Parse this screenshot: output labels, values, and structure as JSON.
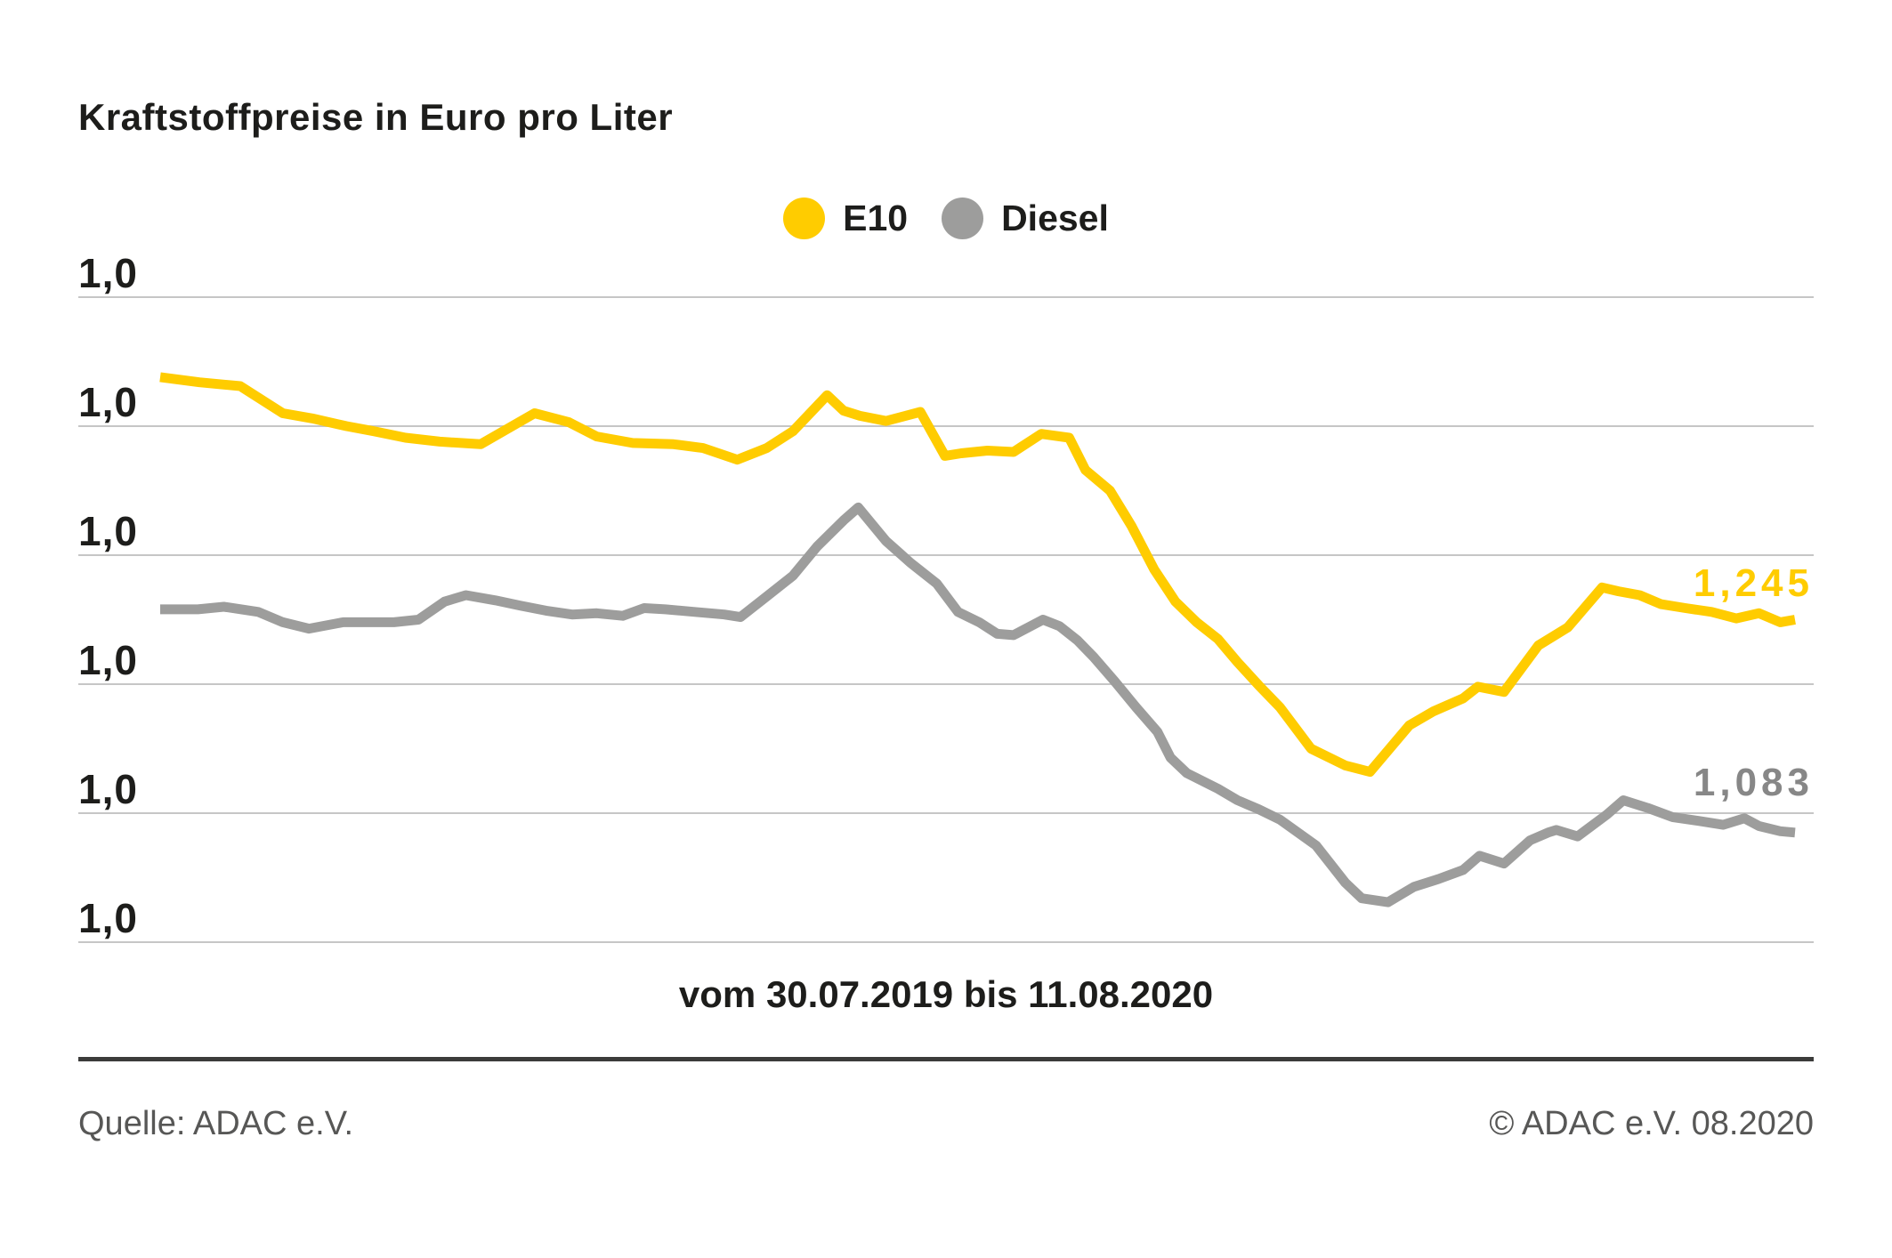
{
  "title": "Kraftstoffpreise in Euro pro Liter",
  "legend": [
    {
      "label": "E10",
      "color": "#FFCC00"
    },
    {
      "label": "Diesel",
      "color": "#9D9D9C"
    }
  ],
  "y_axis": {
    "labels": [
      "1,0",
      "1,0",
      "1,0",
      "1,0",
      "1,0",
      "1,0"
    ]
  },
  "annotations": {
    "e10_end": "1,245",
    "diesel_end": "1,083"
  },
  "x_caption": "vom 30.07.2019 bis 11.08.2020",
  "footer": {
    "source": "Quelle: ADAC e.V.",
    "copyright": "© ADAC e.V. 08.2020"
  },
  "colors": {
    "e10": "#FFCC00",
    "diesel": "#9D9D9C",
    "diesel_label": "#878787",
    "gridline": "#C6C6C6",
    "text_dark": "#1D1D1B",
    "footer_text": "#575756",
    "separator": "#3C3C3B"
  },
  "chart_data": {
    "type": "line",
    "title": "Kraftstoffpreise in Euro pro Liter",
    "ylabel": "Euro pro Liter",
    "x_range": [
      "30.07.2019",
      "11.08.2020"
    ],
    "ylim": [
      1.0,
      1.5
    ],
    "grid": true,
    "gridlines": 6,
    "y_tick_labels_shown": [
      "1,0",
      "1,0",
      "1,0",
      "1,0",
      "1,0",
      "1,0"
    ],
    "legend_position": "top-center",
    "series": [
      {
        "name": "E10",
        "color": "#FFCC00",
        "end_label": "1,245",
        "end_value": 1.245,
        "points": [
          [
            0.0,
            1.438
          ],
          [
            0.024,
            1.434
          ],
          [
            0.049,
            1.431
          ],
          [
            0.075,
            1.41
          ],
          [
            0.093,
            1.406
          ],
          [
            0.114,
            1.4
          ],
          [
            0.131,
            1.396
          ],
          [
            0.15,
            1.391
          ],
          [
            0.171,
            1.388
          ],
          [
            0.196,
            1.386
          ],
          [
            0.229,
            1.41
          ],
          [
            0.25,
            1.403
          ],
          [
            0.267,
            1.392
          ],
          [
            0.289,
            1.387
          ],
          [
            0.314,
            1.386
          ],
          [
            0.332,
            1.383
          ],
          [
            0.353,
            1.374
          ],
          [
            0.371,
            1.383
          ],
          [
            0.387,
            1.396
          ],
          [
            0.408,
            1.424
          ],
          [
            0.418,
            1.412
          ],
          [
            0.428,
            1.408
          ],
          [
            0.444,
            1.404
          ],
          [
            0.465,
            1.411
          ],
          [
            0.48,
            1.377
          ],
          [
            0.49,
            1.379
          ],
          [
            0.506,
            1.381
          ],
          [
            0.522,
            1.38
          ],
          [
            0.539,
            1.394
          ],
          [
            0.556,
            1.391
          ],
          [
            0.566,
            1.366
          ],
          [
            0.581,
            1.35
          ],
          [
            0.594,
            1.323
          ],
          [
            0.608,
            1.289
          ],
          [
            0.621,
            1.264
          ],
          [
            0.634,
            1.248
          ],
          [
            0.647,
            1.235
          ],
          [
            0.659,
            1.217
          ],
          [
            0.672,
            1.199
          ],
          [
            0.685,
            1.182
          ],
          [
            0.704,
            1.15
          ],
          [
            0.725,
            1.137
          ],
          [
            0.74,
            1.132
          ],
          [
            0.764,
            1.168
          ],
          [
            0.779,
            1.179
          ],
          [
            0.797,
            1.189
          ],
          [
            0.806,
            1.198
          ],
          [
            0.822,
            1.194
          ],
          [
            0.843,
            1.23
          ],
          [
            0.861,
            1.244
          ],
          [
            0.882,
            1.275
          ],
          [
            0.892,
            1.272
          ],
          [
            0.905,
            1.269
          ],
          [
            0.918,
            1.262
          ],
          [
            0.933,
            1.259
          ],
          [
            0.949,
            1.256
          ],
          [
            0.964,
            1.251
          ],
          [
            0.978,
            1.255
          ],
          [
            0.991,
            1.248
          ],
          [
            1.0,
            1.25
          ]
        ]
      },
      {
        "name": "Diesel",
        "color": "#9D9D9C",
        "end_label": "1,083",
        "end_value": 1.083,
        "points": [
          [
            0.0,
            1.258
          ],
          [
            0.023,
            1.258
          ],
          [
            0.039,
            1.26
          ],
          [
            0.06,
            1.256
          ],
          [
            0.075,
            1.248
          ],
          [
            0.091,
            1.243
          ],
          [
            0.112,
            1.248
          ],
          [
            0.127,
            1.248
          ],
          [
            0.143,
            1.248
          ],
          [
            0.158,
            1.25
          ],
          [
            0.174,
            1.264
          ],
          [
            0.187,
            1.269
          ],
          [
            0.205,
            1.265
          ],
          [
            0.22,
            1.261
          ],
          [
            0.236,
            1.257
          ],
          [
            0.252,
            1.254
          ],
          [
            0.267,
            1.255
          ],
          [
            0.283,
            1.253
          ],
          [
            0.296,
            1.259
          ],
          [
            0.309,
            1.258
          ],
          [
            0.327,
            1.256
          ],
          [
            0.345,
            1.254
          ],
          [
            0.355,
            1.252
          ],
          [
            0.371,
            1.268
          ],
          [
            0.387,
            1.284
          ],
          [
            0.402,
            1.307
          ],
          [
            0.418,
            1.327
          ],
          [
            0.427,
            1.337
          ],
          [
            0.444,
            1.311
          ],
          [
            0.459,
            1.294
          ],
          [
            0.475,
            1.278
          ],
          [
            0.488,
            1.256
          ],
          [
            0.501,
            1.248
          ],
          [
            0.512,
            1.239
          ],
          [
            0.522,
            1.238
          ],
          [
            0.54,
            1.25
          ],
          [
            0.55,
            1.245
          ],
          [
            0.561,
            1.234
          ],
          [
            0.571,
            1.221
          ],
          [
            0.584,
            1.202
          ],
          [
            0.597,
            1.182
          ],
          [
            0.61,
            1.163
          ],
          [
            0.618,
            1.143
          ],
          [
            0.628,
            1.131
          ],
          [
            0.647,
            1.119
          ],
          [
            0.659,
            1.11
          ],
          [
            0.672,
            1.103
          ],
          [
            0.685,
            1.095
          ],
          [
            0.707,
            1.075
          ],
          [
            0.725,
            1.046
          ],
          [
            0.735,
            1.034
          ],
          [
            0.751,
            1.031
          ],
          [
            0.767,
            1.043
          ],
          [
            0.782,
            1.049
          ],
          [
            0.797,
            1.056
          ],
          [
            0.807,
            1.067
          ],
          [
            0.822,
            1.061
          ],
          [
            0.838,
            1.079
          ],
          [
            0.849,
            1.085
          ],
          [
            0.854,
            1.087
          ],
          [
            0.867,
            1.082
          ],
          [
            0.885,
            1.099
          ],
          [
            0.895,
            1.11
          ],
          [
            0.91,
            1.104
          ],
          [
            0.925,
            1.097
          ],
          [
            0.941,
            1.094
          ],
          [
            0.956,
            1.091
          ],
          [
            0.969,
            1.096
          ],
          [
            0.978,
            1.09
          ],
          [
            0.991,
            1.086
          ],
          [
            1.0,
            1.085
          ]
        ]
      }
    ]
  }
}
